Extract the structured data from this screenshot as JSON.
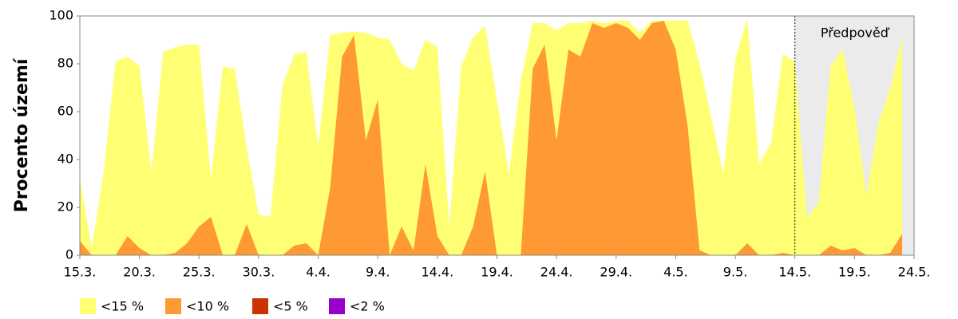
{
  "chart_data": {
    "type": "area",
    "y_label": "Procento území",
    "annotation": "Předpověď",
    "forecast_from": "14.5.",
    "categories": [
      "15.3.",
      null,
      null,
      null,
      null,
      "20.3.",
      null,
      null,
      null,
      null,
      "25.3.",
      null,
      null,
      null,
      null,
      "30.3.",
      null,
      null,
      null,
      null,
      "4.4.",
      null,
      null,
      null,
      null,
      "9.4.",
      null,
      null,
      null,
      null,
      "14.4.",
      null,
      null,
      null,
      null,
      "19.4.",
      null,
      null,
      null,
      null,
      "24.4.",
      null,
      null,
      null,
      null,
      "29.4.",
      null,
      null,
      null,
      null,
      "4.5.",
      null,
      null,
      null,
      null,
      "9.5.",
      null,
      null,
      null,
      null,
      "14.5.",
      null,
      null,
      null,
      null,
      "19.5.",
      null,
      null,
      null,
      null,
      "24.5."
    ],
    "series": [
      {
        "name": "<15 %",
        "color": "#ffff73",
        "values": [
          32,
          3,
          35,
          81,
          83,
          79,
          35,
          85,
          87,
          88,
          88,
          32,
          79,
          78,
          45,
          17,
          16,
          71,
          84,
          85,
          45,
          92,
          93,
          93.5,
          93,
          91,
          90,
          80,
          77,
          90,
          87,
          12,
          79,
          91,
          96,
          65,
          34,
          73,
          97,
          97,
          94,
          97,
          97,
          98,
          97,
          98,
          98,
          93,
          98,
          98,
          98,
          98,
          80,
          57,
          34,
          82,
          99,
          38,
          47,
          84,
          81,
          16,
          22,
          79,
          86,
          62,
          25,
          55,
          70,
          91,
          null
        ]
      },
      {
        "name": "<10 %",
        "color": "#ff9933",
        "values": [
          6,
          0,
          0,
          0,
          8,
          3,
          0,
          0,
          1,
          5,
          12,
          16,
          0,
          0,
          13,
          0,
          0,
          0,
          4,
          5,
          0,
          28,
          83,
          92,
          48,
          65,
          0,
          12,
          2,
          38,
          8,
          0,
          0,
          12,
          35,
          0,
          0,
          0,
          78,
          88,
          48,
          86,
          83,
          97,
          95,
          97,
          95,
          90,
          97,
          98,
          86,
          54,
          2,
          0,
          0,
          0,
          5,
          0,
          0,
          1,
          0,
          0,
          0,
          4,
          2,
          3,
          0,
          0,
          1,
          9,
          null
        ]
      },
      {
        "name": "<5 %",
        "color": "#cc3300",
        "values": [
          0,
          0,
          0,
          0,
          0,
          0,
          0,
          0,
          0,
          0,
          0,
          0,
          0,
          0,
          0,
          0,
          0,
          0,
          0,
          0,
          0,
          0,
          0,
          0,
          0,
          0,
          0,
          0,
          0,
          0,
          0,
          0,
          0,
          0,
          0,
          0,
          0,
          0,
          0,
          0,
          0,
          0,
          0,
          0,
          0,
          0,
          0,
          0,
          0,
          0,
          0,
          0,
          0,
          0,
          0,
          0,
          0,
          0,
          0,
          0,
          0,
          0,
          0,
          0,
          0,
          0,
          0,
          0,
          0,
          0,
          null
        ]
      },
      {
        "name": "<2 %",
        "color": "#9900cc",
        "values": [
          0,
          0,
          0,
          0,
          0,
          0,
          0,
          0,
          0,
          0,
          0,
          0,
          0,
          0,
          0,
          0,
          0,
          0,
          0,
          0,
          0,
          0,
          0,
          0,
          0,
          0,
          0,
          0,
          0,
          0,
          0,
          0,
          0,
          0,
          0,
          0,
          0,
          0,
          0,
          0,
          0,
          0,
          0,
          0,
          0,
          0,
          0,
          0,
          0,
          0,
          0,
          0,
          0,
          0,
          0,
          0,
          0,
          0,
          0,
          0,
          0,
          0,
          0,
          0,
          0,
          0,
          0,
          0,
          0,
          0,
          null
        ]
      }
    ],
    "ylim": [
      0,
      100
    ],
    "yticks": [
      0,
      20,
      40,
      60,
      80,
      100
    ],
    "grid": false
  }
}
